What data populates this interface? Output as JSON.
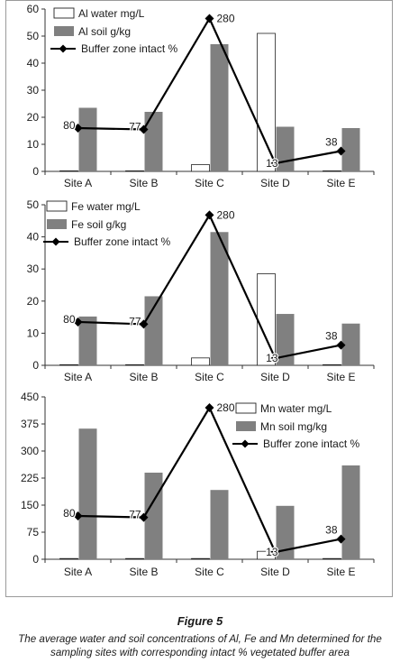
{
  "figure": {
    "title": "Figure 5",
    "caption": "The average water and soil concentrations of Al, Fe and Mn determined for the sampling sites with corresponding intact % vegetated buffer area"
  },
  "colors": {
    "water_fill": "#ffffff",
    "soil_fill": "#808080",
    "bar_stroke": "#222222",
    "line": "#000000"
  },
  "chart_data": [
    {
      "type": "bar",
      "categories": [
        "Site A",
        "Site B",
        "Site C",
        "Site D",
        "Site E"
      ],
      "ylim": [
        0,
        60
      ],
      "yticks": [
        "0",
        "10",
        "20",
        "30",
        "40",
        "50",
        "60"
      ],
      "legend_position": "top-left",
      "series": [
        {
          "name": "Al water mg/L",
          "kind": "bar",
          "values": [
            0.2,
            0.2,
            2.5,
            51,
            0.2
          ]
        },
        {
          "name": "Al soil g/kg",
          "kind": "bar",
          "values": [
            23.5,
            22,
            47,
            16.5,
            16
          ]
        },
        {
          "name": "Buffer zone intact %",
          "kind": "line-marker",
          "values": [
            16,
            15.5,
            56.5,
            3,
            7.5
          ],
          "labels": [
            "80",
            "77",
            "280",
            "13",
            "38"
          ]
        }
      ]
    },
    {
      "type": "bar",
      "categories": [
        "Site A",
        "Site B",
        "Site C",
        "Site D",
        "Site E"
      ],
      "ylim": [
        0,
        50
      ],
      "yticks": [
        "0",
        "10",
        "20",
        "30",
        "40",
        "50"
      ],
      "legend_position": "top-left",
      "series": [
        {
          "name": "Fe water mg/L",
          "kind": "bar",
          "values": [
            0.2,
            0.2,
            2.3,
            28.5,
            0.2
          ]
        },
        {
          "name": "Fe soil g/kg",
          "kind": "bar",
          "values": [
            15.2,
            21.5,
            41.5,
            16,
            13
          ]
        },
        {
          "name": "Buffer zone intact %",
          "kind": "line-marker",
          "values": [
            13.5,
            12.8,
            46.8,
            2.2,
            6.3
          ],
          "labels": [
            "80",
            "77",
            "280",
            "13",
            "38"
          ]
        }
      ]
    },
    {
      "type": "bar",
      "categories": [
        "Site A",
        "Site B",
        "Site C",
        "Site D",
        "Site E"
      ],
      "ylim": [
        0,
        450
      ],
      "yticks": [
        "0",
        "75",
        "150",
        "225",
        "300",
        "375",
        "450"
      ],
      "legend_position": "top-right",
      "series": [
        {
          "name": "Mn water mg/L",
          "kind": "bar",
          "values": [
            2,
            2,
            2,
            22,
            2
          ]
        },
        {
          "name": "Mn soil mg/kg",
          "kind": "bar",
          "values": [
            362,
            240,
            192,
            148,
            260
          ]
        },
        {
          "name": "Buffer zone intact %",
          "kind": "line-marker",
          "values": [
            120,
            116,
            420,
            20,
            56
          ],
          "labels": [
            "80",
            "77",
            "280",
            "13",
            "38"
          ]
        }
      ]
    }
  ]
}
